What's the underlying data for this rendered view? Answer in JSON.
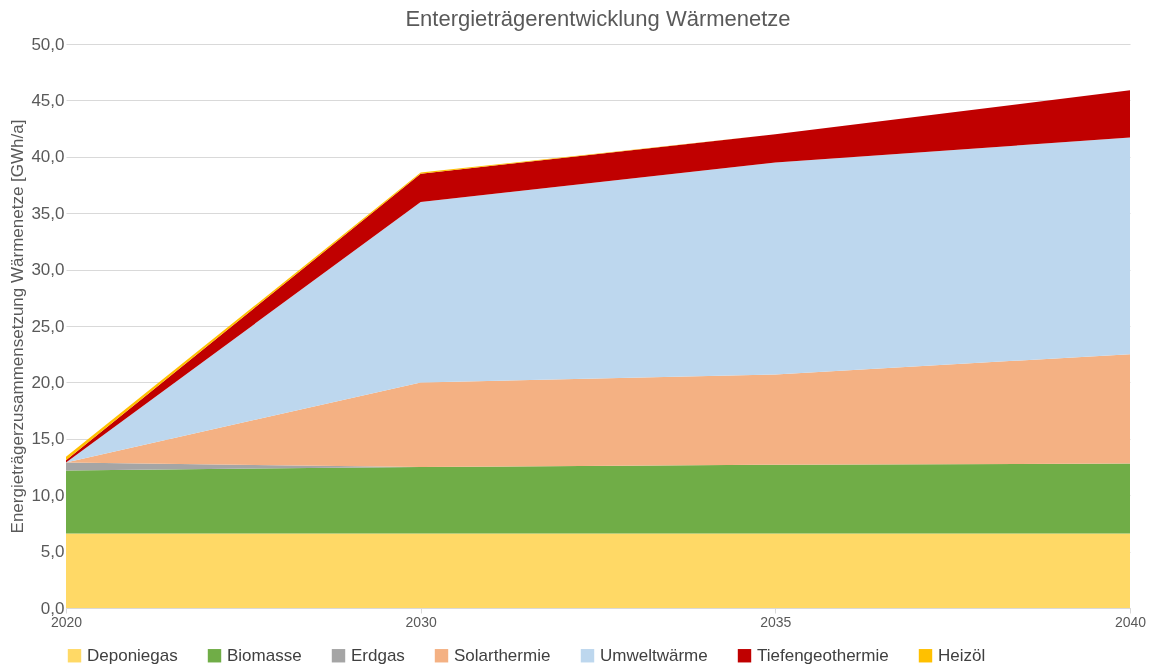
{
  "chart_data": {
    "type": "area",
    "title": "Entergieträgerentwicklung Wärmenetze",
    "ylabel": "Energieträgerzusammensetzung Wärmenetze [GWh/a]",
    "categories": [
      "2020",
      "2030",
      "2035",
      "2040"
    ],
    "stacked": true,
    "series": [
      {
        "name": "Deponiegas",
        "color": "#ffd966",
        "values": [
          6.6,
          6.6,
          6.6,
          6.6
        ]
      },
      {
        "name": "Biomasse",
        "color": "#70ad47",
        "values": [
          5.6,
          5.9,
          6.1,
          6.2
        ]
      },
      {
        "name": "Erdgas",
        "color": "#a5a5a5",
        "values": [
          0.7,
          0.0,
          0.0,
          0.0
        ]
      },
      {
        "name": "Solarthermie",
        "color": "#f4b183",
        "values": [
          0.0,
          7.5,
          8.0,
          9.7
        ]
      },
      {
        "name": "Umweltwärme",
        "color": "#bdd7ee",
        "values": [
          0.0,
          16.0,
          18.8,
          19.2
        ]
      },
      {
        "name": "Tiefengeothermie",
        "color": "#c00000",
        "values": [
          0.2,
          2.5,
          2.5,
          4.2
        ]
      },
      {
        "name": "Heizöl",
        "color": "#ffc000",
        "values": [
          0.3,
          0.1,
          0.0,
          0.0
        ]
      }
    ],
    "ylim": [
      0,
      50
    ],
    "yticks": [
      {
        "value": 0,
        "label": "0,0"
      },
      {
        "value": 5,
        "label": "5,0"
      },
      {
        "value": 10,
        "label": "10,0"
      },
      {
        "value": 15,
        "label": "15,0"
      },
      {
        "value": 20,
        "label": "20,0"
      },
      {
        "value": 25,
        "label": "25,0"
      },
      {
        "value": 30,
        "label": "30,0"
      },
      {
        "value": 35,
        "label": "35,0"
      },
      {
        "value": 40,
        "label": "40,0"
      },
      {
        "value": 45,
        "label": "45,0"
      },
      {
        "value": 50,
        "label": "50,0"
      }
    ],
    "grid": "y",
    "legend": "bottom"
  }
}
